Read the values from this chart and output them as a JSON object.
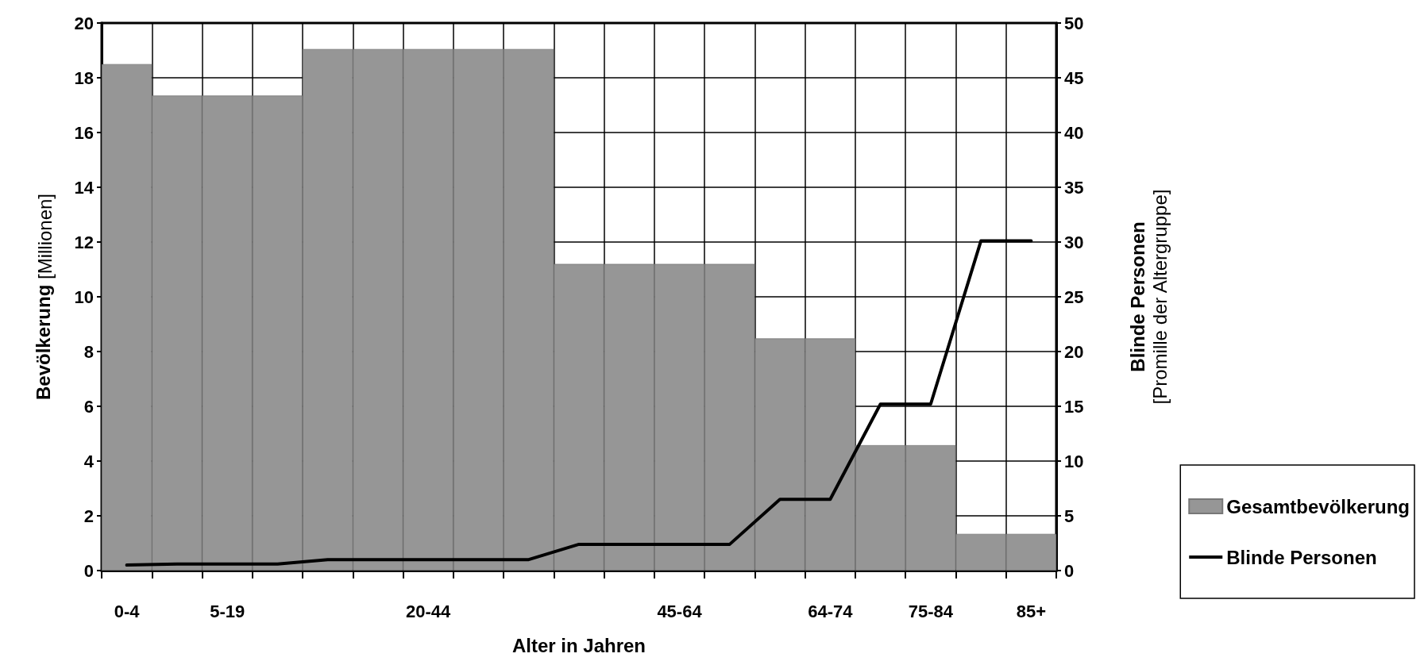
{
  "chart_data": {
    "type": "bar",
    "xlabel": "Alter in Jahren",
    "ylabel": "Bevölkerung [Millionen]",
    "y2label": "Blinde Personen [Promille der Altergruppe]",
    "categories": [
      "0-4",
      null,
      "5-19",
      null,
      null,
      null,
      "20-44",
      null,
      null,
      null,
      null,
      "45-64",
      null,
      null,
      "64-74",
      null,
      "75-84",
      null,
      "85+"
    ],
    "series": [
      {
        "name": "Gesamtbevölkerung",
        "color": "#969696",
        "values": [
          18.5,
          17.35,
          17.35,
          17.35,
          19.05,
          19.05,
          19.05,
          19.05,
          19.05,
          11.2,
          11.2,
          11.2,
          11.2,
          8.48,
          8.48,
          4.58,
          4.58,
          1.34,
          1.34
        ]
      },
      {
        "name": "Blinde Personen",
        "type": "line",
        "axis": "y2",
        "color": "#000000",
        "values": [
          0.5,
          0.6,
          0.6,
          0.6,
          1.0,
          1.0,
          1.0,
          1.0,
          1.0,
          2.4,
          2.4,
          2.4,
          2.4,
          6.5,
          6.5,
          15.2,
          15.2,
          30.1,
          30.1
        ]
      }
    ],
    "ylim": [
      0,
      20
    ],
    "yticks": [
      0,
      2,
      4,
      6,
      8,
      10,
      12,
      14,
      16,
      18,
      20
    ],
    "y2lim": [
      0,
      50
    ],
    "y2ticks": [
      0,
      5,
      10,
      15,
      20,
      25,
      30,
      35,
      40,
      45,
      50
    ],
    "grid": true,
    "legend": "bottom right",
    "marker": "none",
    "line_style": "solid"
  }
}
